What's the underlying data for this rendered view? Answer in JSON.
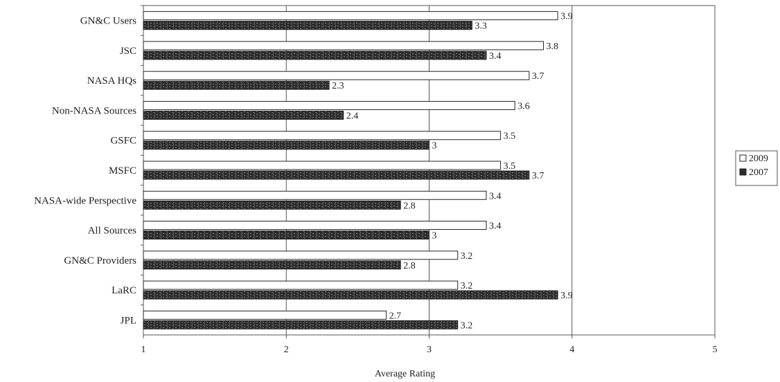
{
  "chart_data": {
    "type": "bar",
    "orientation": "horizontal",
    "title": "",
    "xlabel": "Average Rating",
    "ylabel": "",
    "xlim": [
      1,
      5
    ],
    "xticks": [
      "1",
      "2",
      "3",
      "4",
      "5"
    ],
    "grid": "vertical",
    "legend_position": "right",
    "categories": [
      "GN&C Users",
      "JSC",
      "NASA HQs",
      "Non-NASA Sources",
      "GSFC",
      "MSFC",
      "NASA-wide Perspective",
      "All Sources",
      "GN&C Providers",
      "LaRC",
      "JPL"
    ],
    "series": [
      {
        "name": "2009",
        "color": "#ffffff",
        "values": [
          3.9,
          3.8,
          3.7,
          3.6,
          3.5,
          3.5,
          3.4,
          3.4,
          3.2,
          3.2,
          2.7
        ],
        "labels": [
          "3.9",
          "3.8",
          "3.7",
          "3.6",
          "3.5",
          "3.5",
          "3.4",
          "3.4",
          "3.2",
          "3.2",
          "2.7"
        ]
      },
      {
        "name": "2007",
        "color": "#2b2b2b",
        "values": [
          3.3,
          3.4,
          2.3,
          2.4,
          3.0,
          3.7,
          2.8,
          3.0,
          2.8,
          3.9,
          3.2
        ],
        "labels": [
          "3.3",
          "3.4",
          "2.3",
          "2.4",
          "3",
          "3.7",
          "2.8",
          "3",
          "2.8",
          "3.9",
          "3.2"
        ]
      }
    ]
  }
}
